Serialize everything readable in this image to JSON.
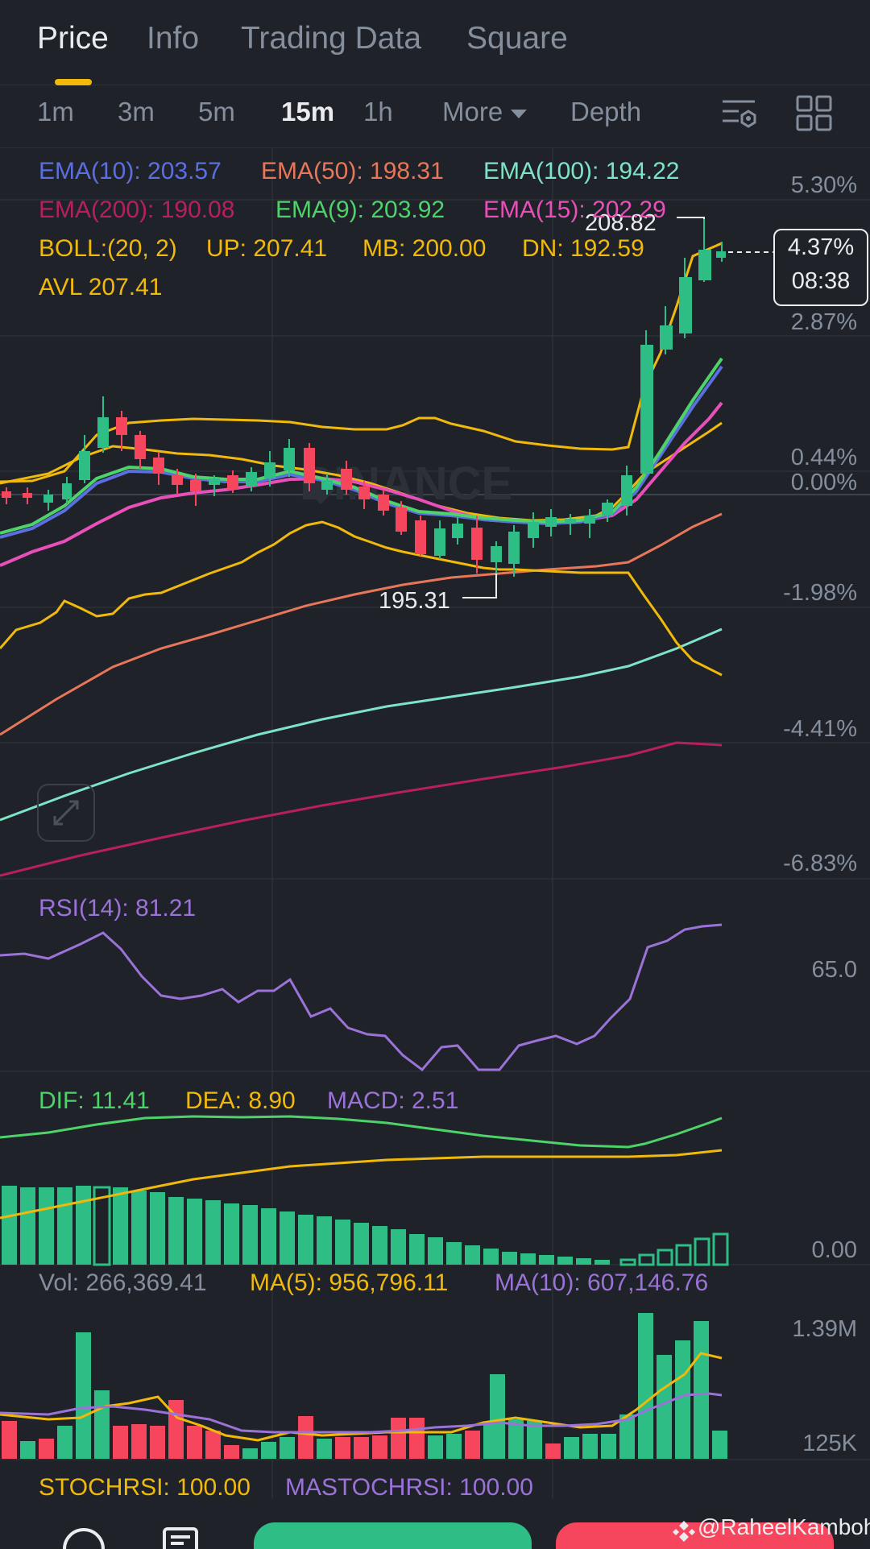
{
  "tabs": [
    "Price",
    "Info",
    "Trading Data",
    "Square"
  ],
  "intervals": [
    "1m",
    "3m",
    "5m",
    "15m",
    "1h",
    "More",
    "Depth"
  ],
  "legend": {
    "ema10": "EMA(10): 203.57",
    "ema50": "EMA(50): 198.31",
    "ema100": "EMA(100): 194.22",
    "ema200": "EMA(200): 190.08",
    "ema9": "EMA(9): 203.92",
    "ema15": "EMA(15): 202.29",
    "boll": "BOLL:(20, 2)",
    "up": "UP: 207.41",
    "mb": "MB: 200.00",
    "dn": "DN: 192.59",
    "avl": "AVL 207.41"
  },
  "price_axis": [
    "5.30%",
    "2.87%",
    "0.44%",
    "0.00%",
    "-1.98%",
    "-4.41%",
    "-6.83%"
  ],
  "current": {
    "pct": "4.37%",
    "countdown": "08:38"
  },
  "markers": {
    "high": "208.82",
    "low": "195.31"
  },
  "rsi": {
    "label": "RSI(14): 81.21",
    "axis": "65.0"
  },
  "macd": {
    "dif": "DIF: 11.41",
    "dea": "DEA: 8.90",
    "macd": "MACD: 2.51",
    "axis": "0.00"
  },
  "vol": {
    "vol": "Vol: 266,369.41",
    "ma5": "MA(5): 956,796.11",
    "ma10": "MA(10): 607,146.76",
    "axis_top": "1.39M",
    "axis_bottom": "125K"
  },
  "stoch": {
    "stochrsi": "STOCHRSI: 100.00",
    "mastochrsi": "MASTOCHRSI: 100.00"
  },
  "watermark": "BINANCE",
  "credit": "@RaheelKamboh",
  "colors": {
    "up": "#2ebd85",
    "down": "#f6465d",
    "ema10": "#5b6fe0",
    "ema50": "#e8765a",
    "ema100": "#7ee3c8",
    "ema200": "#b81f5e",
    "ema9": "#4ed26a",
    "ema15": "#e84fb8",
    "boll": "#f0b90b",
    "rsi": "#9b72d8",
    "macd_dif": "#4ed26a",
    "macd_dea": "#f0b90b"
  }
}
